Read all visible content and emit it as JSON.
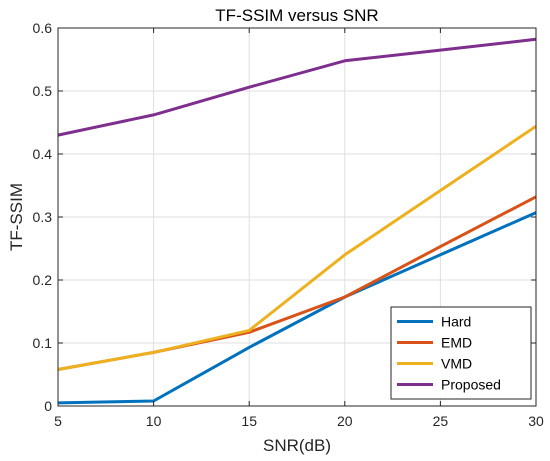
{
  "chart_data": {
    "type": "line",
    "title": "TF-SSIM versus SNR",
    "xlabel": "SNR(dB)",
    "ylabel": "TF-SSIM",
    "x": [
      5,
      10,
      15,
      20,
      25,
      30
    ],
    "xlim": [
      5,
      30
    ],
    "ylim": [
      0,
      0.6
    ],
    "xticks": [
      5,
      10,
      15,
      20,
      25,
      30
    ],
    "yticks": [
      0,
      0.1,
      0.2,
      0.3,
      0.4,
      0.5,
      0.6
    ],
    "xtick_labels": [
      "5",
      "10",
      "15",
      "20",
      "25",
      "30"
    ],
    "ytick_labels": [
      "0",
      "0.1",
      "0.2",
      "0.3",
      "0.4",
      "0.5",
      "0.6"
    ],
    "grid": true,
    "legend_position": "bottom-right",
    "series": [
      {
        "name": "Hard",
        "color": "#0072BD",
        "values": [
          0.005,
          0.008,
          0.093,
          0.173,
          0.24,
          0.307
        ]
      },
      {
        "name": "EMD",
        "color": "#D95319",
        "values": [
          0.058,
          0.085,
          0.117,
          0.173,
          0.253,
          0.332
        ]
      },
      {
        "name": "VMD",
        "color": "#EDB120",
        "values": [
          0.058,
          0.085,
          0.12,
          0.24,
          0.342,
          0.444
        ]
      },
      {
        "name": "Proposed",
        "color": "#7E2F8E",
        "values": [
          0.43,
          0.462,
          0.506,
          0.548,
          0.565,
          0.582
        ]
      }
    ]
  }
}
